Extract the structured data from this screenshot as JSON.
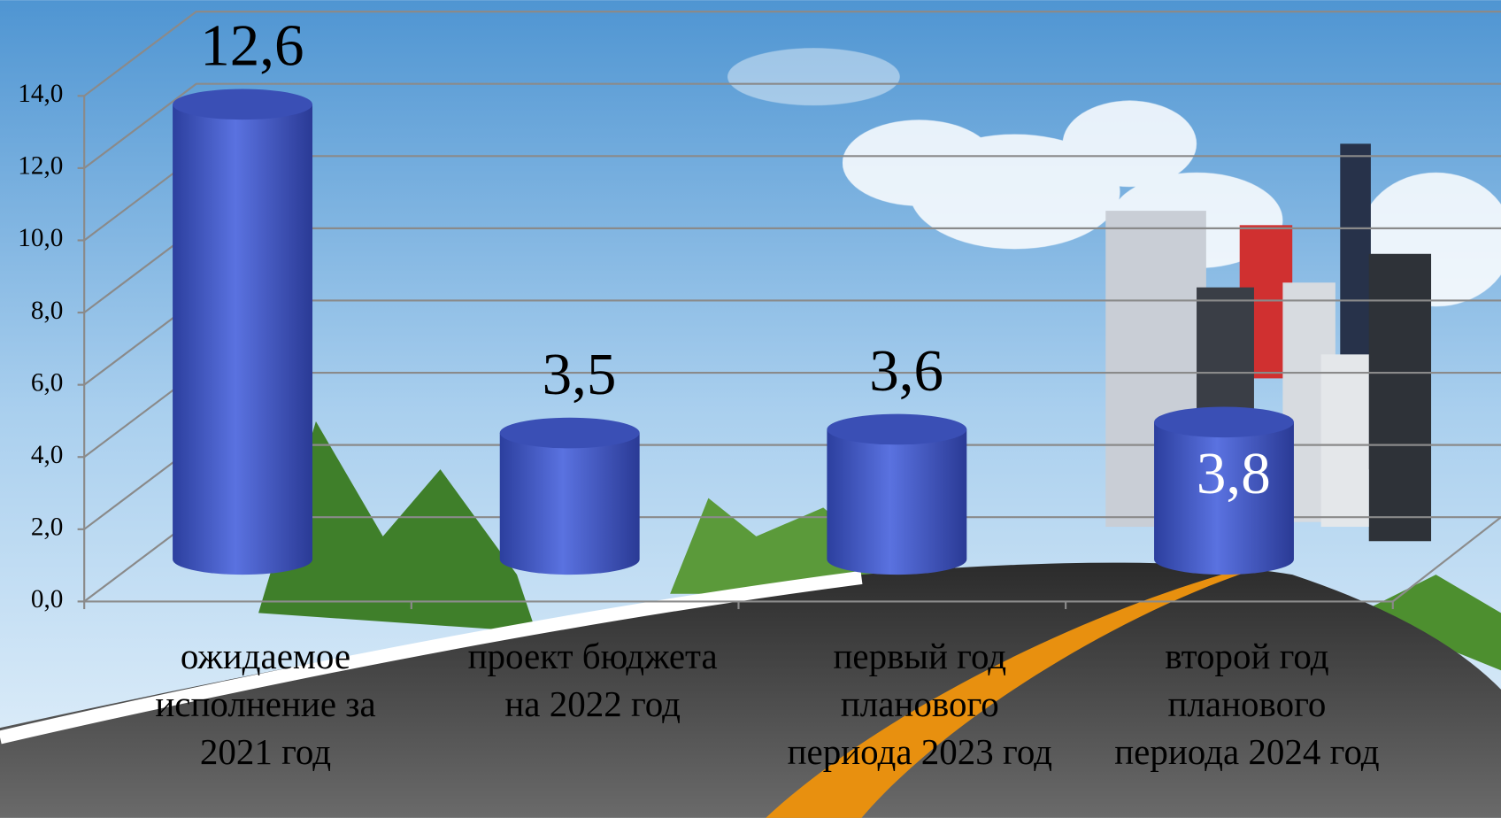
{
  "chart_data": {
    "type": "bar3d",
    "categories": [
      "ожидаемое исполнение за 2021 год",
      "проект бюджета на 2022 год",
      "первый год планового периода 2023 год",
      "второй год планового периода 2024 год"
    ],
    "values": [
      12.6,
      3.5,
      3.6,
      3.8
    ],
    "value_labels": [
      "12,6",
      "3,5",
      "3,6",
      "3,8"
    ],
    "color": "#4a63cf",
    "ylim": [
      0,
      14
    ],
    "yticks": [
      {
        "value": 0,
        "label": "0,0"
      },
      {
        "value": 2,
        "label": "2,0"
      },
      {
        "value": 4,
        "label": "4,0"
      },
      {
        "value": 6,
        "label": "6,0"
      },
      {
        "value": 8,
        "label": "8,0"
      },
      {
        "value": 10,
        "label": "10,0"
      },
      {
        "value": 12,
        "label": "12,0"
      },
      {
        "value": 14,
        "label": "14,0"
      }
    ],
    "grid": true
  }
}
